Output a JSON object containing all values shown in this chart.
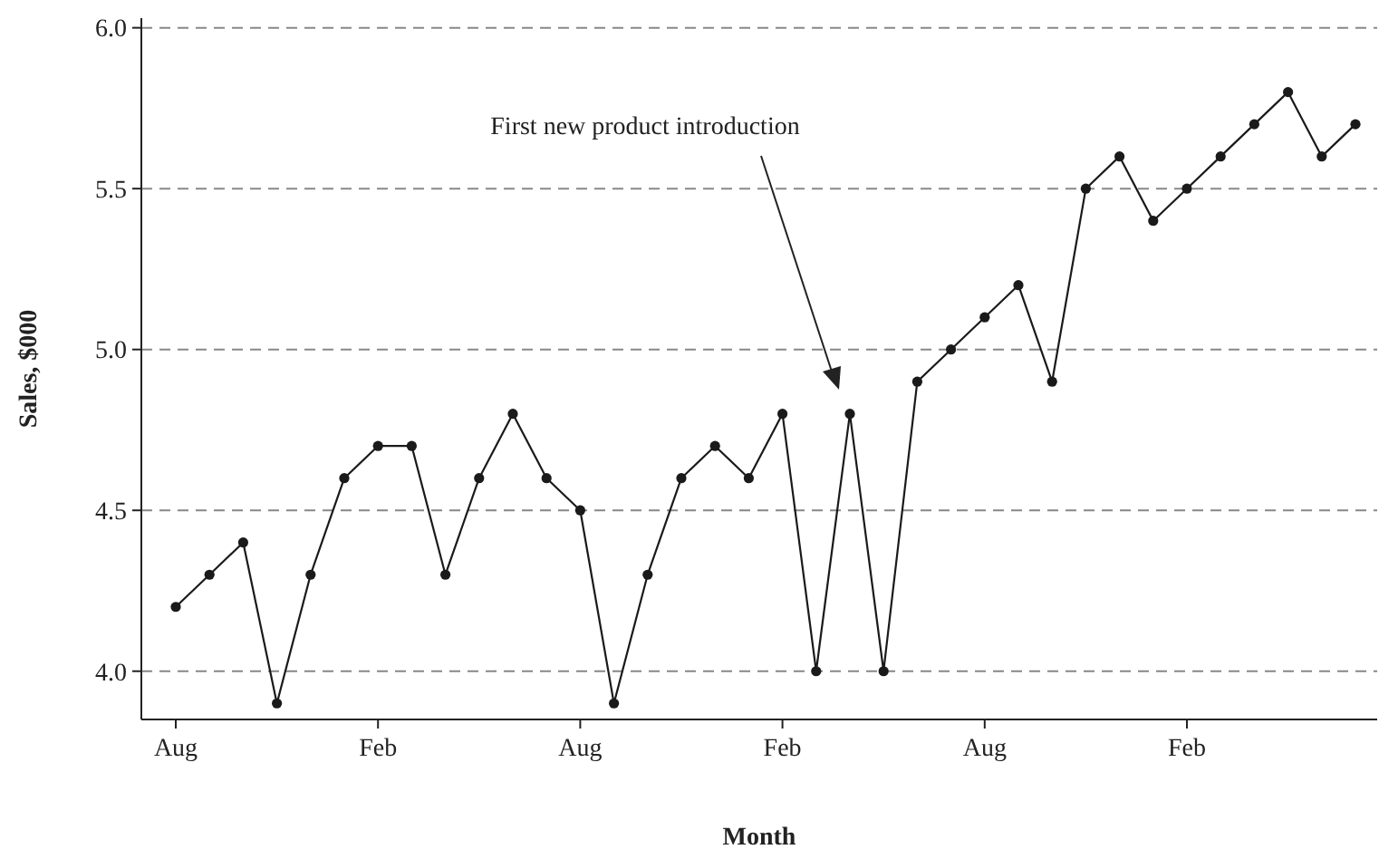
{
  "chart_data": {
    "type": "line",
    "xlabel": "Month",
    "ylabel": "Sales, $000",
    "categories": [
      "Aug",
      null,
      null,
      null,
      null,
      null,
      "Feb",
      null,
      null,
      null,
      null,
      null,
      "Aug",
      null,
      null,
      null,
      null,
      null,
      "Feb",
      null,
      null,
      null,
      null,
      null,
      "Aug",
      null,
      null,
      null,
      null,
      null,
      "Feb",
      null,
      null,
      null,
      null,
      null
    ],
    "series": [
      {
        "color": "#1a1a1a",
        "values": [
          4.2,
          4.3,
          4.4,
          3.9,
          4.3,
          4.6,
          4.7,
          4.7,
          4.3,
          4.6,
          4.8,
          4.6,
          4.5,
          3.9,
          4.3,
          4.6,
          4.7,
          4.6,
          4.8,
          4.0,
          4.8,
          4.0,
          4.9,
          5.0,
          5.1,
          5.2,
          4.9,
          5.5,
          5.6,
          5.4,
          5.5,
          5.6,
          5.7,
          5.8,
          5.6,
          5.7
        ]
      }
    ],
    "ylim": [
      3.85,
      6.03
    ],
    "yticks": [
      {
        "value": 4,
        "label": "4.0"
      },
      {
        "value": 4.5,
        "label": "4.5"
      },
      {
        "value": 5,
        "label": "5.0"
      },
      {
        "value": 5.5,
        "label": "5.5"
      },
      {
        "value": 6,
        "label": "6.0"
      }
    ],
    "grid": "y",
    "marker": "circle",
    "line_style": "solid",
    "annotations": [
      "First new product introduction"
    ]
  }
}
